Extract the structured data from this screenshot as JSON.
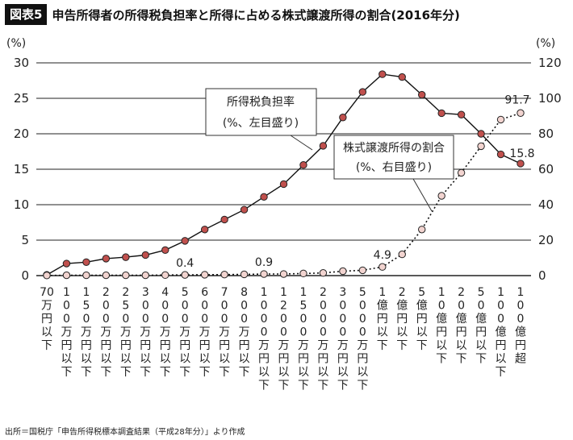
{
  "title": {
    "badge": "図表5",
    "text": "申告所得者の所得税負担率と所得に占める株式譲渡所得の割合(2016年分)"
  },
  "source": "出所＝国税庁「申告所得税標本調査結果（平成28年分）」より作成",
  "chart_data": {
    "type": "line",
    "left_axis": {
      "unit": "(%)",
      "range": [
        0,
        30
      ],
      "ticks": [
        0,
        5,
        10,
        15,
        20,
        25,
        30
      ]
    },
    "right_axis": {
      "unit": "(%)",
      "range": [
        0,
        120
      ],
      "ticks": [
        0,
        20,
        40,
        60,
        80,
        100,
        120
      ]
    },
    "grid": "horizontal",
    "categories": [
      "70万円以下",
      "100万円以下",
      "150万円以下",
      "200万円以下",
      "250万円以下",
      "300万円以下",
      "400万円以下",
      "500万円以下",
      "600万円以下",
      "700万円以下",
      "800万円以下",
      "1000万円以下",
      "1200万円以下",
      "1500万円以下",
      "2000万円以下",
      "3000万円以下",
      "5000万円以下",
      "1億円以下",
      "2億円以下",
      "5億円以下",
      "10億円以下",
      "20億円以下",
      "50億円以下",
      "100億円以下",
      "100億円超"
    ],
    "series": [
      {
        "name_line1": "所得税負担率",
        "name_line2": "(%、左目盛り)",
        "axis": "left",
        "style": "solid",
        "color": "#c0504d",
        "values": [
          0.1,
          1.7,
          1.9,
          2.4,
          2.6,
          2.9,
          3.6,
          4.9,
          6.5,
          7.9,
          9.3,
          11.1,
          12.9,
          15.6,
          18.3,
          22.3,
          25.9,
          28.4,
          28.0,
          25.5,
          22.9,
          22.7,
          20.0,
          17.1,
          15.8
        ]
      },
      {
        "name_line1": "株式譲渡所得の割合",
        "name_line2": "(%、右目盛り)",
        "axis": "right",
        "style": "dotted",
        "color": "#f2d4d0",
        "values": [
          0.1,
          0.2,
          0.2,
          0.2,
          0.2,
          0.2,
          0.3,
          0.4,
          0.5,
          0.6,
          0.7,
          0.9,
          0.9,
          1.2,
          1.5,
          2.5,
          3.0,
          4.9,
          12.0,
          26.0,
          45.0,
          58.0,
          73.0,
          88.0,
          91.7
        ]
      }
    ],
    "data_labels": [
      {
        "text": "0.4",
        "series": 1,
        "index": 7
      },
      {
        "text": "0.9",
        "series": 1,
        "index": 11
      },
      {
        "text": "4.9",
        "series": 1,
        "index": 17
      },
      {
        "text": "91.7",
        "series": 1,
        "index": 24
      },
      {
        "text": "15.8",
        "series": 0,
        "index": 24
      }
    ]
  }
}
